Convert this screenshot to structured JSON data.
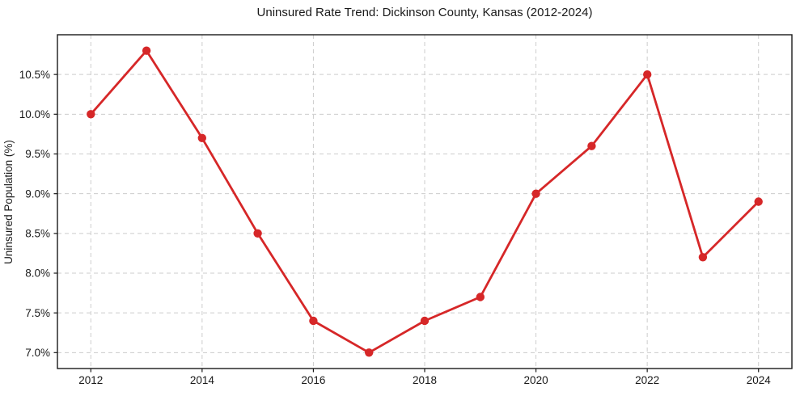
{
  "chart_data": {
    "type": "line",
    "title": "Uninsured Rate Trend: Dickinson County, Kansas (2012-2024)",
    "xlabel": "",
    "ylabel": "Uninsured Population (%)",
    "x": [
      2012,
      2013,
      2014,
      2015,
      2016,
      2017,
      2018,
      2019,
      2020,
      2021,
      2022,
      2023,
      2024
    ],
    "values": [
      10.0,
      10.8,
      9.7,
      8.5,
      7.4,
      7.0,
      7.4,
      7.7,
      9.0,
      9.6,
      10.5,
      8.2,
      8.9
    ],
    "xlim": [
      2011.4,
      2024.6
    ],
    "ylim": [
      6.8,
      11.0
    ],
    "xticks": [
      2012,
      2014,
      2016,
      2018,
      2020,
      2022,
      2024
    ],
    "xtick_labels": [
      "2012",
      "2014",
      "2016",
      "2018",
      "2020",
      "2022",
      "2024"
    ],
    "yticks": [
      7.0,
      7.5,
      8.0,
      8.5,
      9.0,
      9.5,
      10.0,
      10.5
    ],
    "ytick_labels": [
      "7.0%",
      "7.5%",
      "8.0%",
      "8.5%",
      "9.0%",
      "9.5%",
      "10.0%",
      "10.5%"
    ],
    "grid": "both, dashed",
    "legend_position": "none",
    "line_color": "#d62728",
    "marker_color": "#d62728",
    "grid_color": "#cccccc",
    "axis_color": "#1a1a1a",
    "text_color": "#1a1a1a",
    "background_color": "#ffffff"
  }
}
